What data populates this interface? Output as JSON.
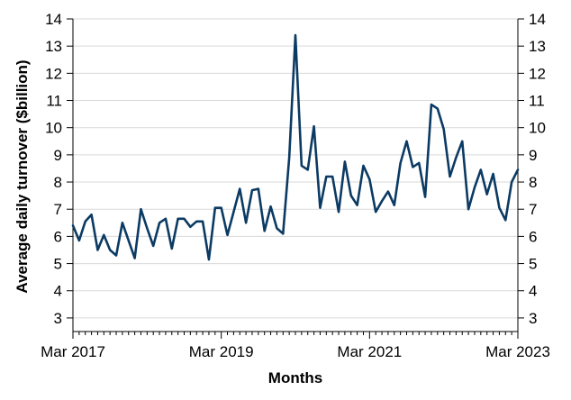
{
  "chart_data": {
    "type": "line",
    "xlabel": "Months",
    "ylabel": "Average daily turnover ($billion)",
    "ylim": [
      2.5,
      14
    ],
    "y_ticks": [
      3,
      4,
      5,
      6,
      7,
      8,
      9,
      10,
      11,
      12,
      13,
      14
    ],
    "x_tick_labels": [
      "Mar 2017",
      "Mar 2019",
      "Mar 2021",
      "Mar 2023"
    ],
    "x_range": [
      "Mar 2017",
      "Mar 2023"
    ],
    "grid": "horizontal",
    "secondary_y_axis": true,
    "line_color": "#0b3a63",
    "x": [
      "Mar 2017",
      "Apr 2017",
      "May 2017",
      "Jun 2017",
      "Jul 2017",
      "Aug 2017",
      "Sep 2017",
      "Oct 2017",
      "Nov 2017",
      "Dec 2017",
      "Jan 2018",
      "Feb 2018",
      "Mar 2018",
      "Apr 2018",
      "May 2018",
      "Jun 2018",
      "Jul 2018",
      "Aug 2018",
      "Sep 2018",
      "Oct 2018",
      "Nov 2018",
      "Dec 2018",
      "Jan 2019",
      "Feb 2019",
      "Mar 2019",
      "Apr 2019",
      "May 2019",
      "Jun 2019",
      "Jul 2019",
      "Aug 2019",
      "Sep 2019",
      "Oct 2019",
      "Nov 2019",
      "Dec 2019",
      "Jan 2020",
      "Feb 2020",
      "Mar 2020",
      "Apr 2020",
      "May 2020",
      "Jun 2020",
      "Jul 2020",
      "Aug 2020",
      "Sep 2020",
      "Oct 2020",
      "Nov 2020",
      "Dec 2020",
      "Jan 2021",
      "Feb 2021",
      "Mar 2021",
      "Apr 2021",
      "May 2021",
      "Jun 2021",
      "Jul 2021",
      "Aug 2021",
      "Sep 2021",
      "Oct 2021",
      "Nov 2021",
      "Dec 2021",
      "Jan 2022",
      "Feb 2022",
      "Mar 2022",
      "Apr 2022",
      "May 2022",
      "Jun 2022",
      "Jul 2022",
      "Aug 2022",
      "Sep 2022",
      "Oct 2022",
      "Nov 2022",
      "Dec 2022",
      "Jan 2023",
      "Feb 2023",
      "Mar 2023"
    ],
    "series": [
      {
        "values": [
          6.4,
          5.85,
          6.55,
          6.8,
          5.5,
          6.05,
          5.5,
          5.3,
          6.5,
          5.85,
          5.2,
          7.0,
          6.3,
          5.65,
          6.5,
          6.65,
          5.55,
          6.65,
          6.65,
          6.35,
          6.55,
          6.55,
          5.15,
          7.05,
          7.05,
          6.05,
          6.9,
          7.75,
          6.5,
          7.7,
          7.75,
          6.2,
          7.1,
          6.3,
          6.1,
          8.9,
          13.4,
          8.6,
          8.45,
          10.05,
          7.05,
          8.2,
          8.2,
          6.9,
          8.75,
          7.5,
          7.15,
          8.6,
          8.1,
          6.9,
          7.3,
          7.65,
          7.15,
          8.7,
          9.5,
          8.55,
          8.7,
          7.45,
          10.85,
          10.7,
          9.95,
          8.2,
          8.9,
          9.5,
          7.0,
          7.8,
          8.45,
          7.55,
          8.3,
          7.05,
          6.6,
          8.0,
          8.45
        ]
      }
    ]
  }
}
